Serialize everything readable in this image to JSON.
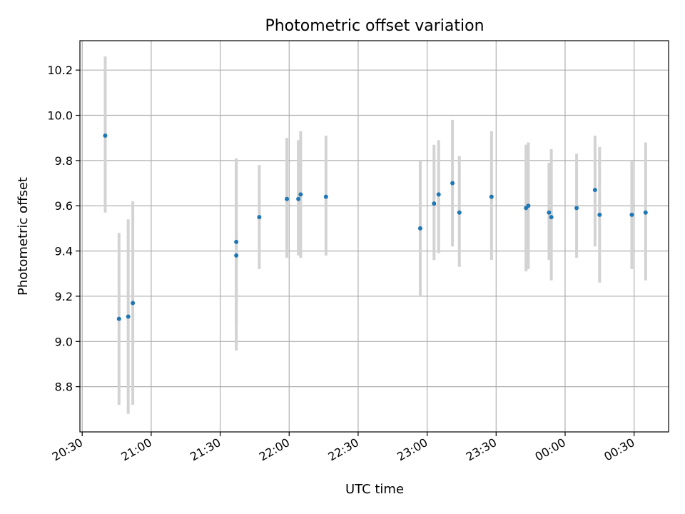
{
  "chart_data": {
    "type": "scatter",
    "title": "Photometric offset variation",
    "xlabel": "UTC time",
    "ylabel": "Photometric offset",
    "x_tick_labels": [
      "20:30",
      "21:00",
      "21:30",
      "22:00",
      "22:30",
      "23:00",
      "23:30",
      "00:00",
      "00:30"
    ],
    "y_tick_labels": [
      "8.8",
      "9.0",
      "9.2",
      "9.4",
      "9.6",
      "9.8",
      "10.0",
      "10.2"
    ],
    "y_ticks": [
      8.8,
      9.0,
      9.2,
      9.4,
      9.6,
      9.8,
      10.0,
      10.2
    ],
    "ylim": [
      8.6,
      10.33
    ],
    "xlim": [
      "20:29",
      "00:45"
    ],
    "grid": true,
    "point_color": "#1f77b4",
    "errorbar_color": "#d3d3d3",
    "points": [
      {
        "x": "20:40",
        "y": 9.91,
        "ylow": 9.57,
        "yhigh": 10.26
      },
      {
        "x": "20:46",
        "y": 9.1,
        "ylow": 8.72,
        "yhigh": 9.48
      },
      {
        "x": "20:50",
        "y": 9.11,
        "ylow": 8.68,
        "yhigh": 9.54
      },
      {
        "x": "20:52",
        "y": 9.17,
        "ylow": 8.72,
        "yhigh": 9.62
      },
      {
        "x": "21:37",
        "y": 9.44,
        "ylow": 9.07,
        "yhigh": 9.81
      },
      {
        "x": "21:37",
        "y": 9.38,
        "ylow": 8.96,
        "yhigh": 9.78
      },
      {
        "x": "21:47",
        "y": 9.55,
        "ylow": 9.32,
        "yhigh": 9.78
      },
      {
        "x": "21:59",
        "y": 9.63,
        "ylow": 9.37,
        "yhigh": 9.9
      },
      {
        "x": "22:04",
        "y": 9.63,
        "ylow": 9.38,
        "yhigh": 9.89
      },
      {
        "x": "22:05",
        "y": 9.65,
        "ylow": 9.37,
        "yhigh": 9.93
      },
      {
        "x": "22:16",
        "y": 9.64,
        "ylow": 9.38,
        "yhigh": 9.91
      },
      {
        "x": "22:57",
        "y": 9.5,
        "ylow": 9.2,
        "yhigh": 9.8
      },
      {
        "x": "23:03",
        "y": 9.61,
        "ylow": 9.36,
        "yhigh": 9.87
      },
      {
        "x": "23:05",
        "y": 9.65,
        "ylow": 9.39,
        "yhigh": 9.89
      },
      {
        "x": "23:11",
        "y": 9.7,
        "ylow": 9.42,
        "yhigh": 9.98
      },
      {
        "x": "23:14",
        "y": 9.57,
        "ylow": 9.33,
        "yhigh": 9.82
      },
      {
        "x": "23:28",
        "y": 9.64,
        "ylow": 9.36,
        "yhigh": 9.93
      },
      {
        "x": "23:43",
        "y": 9.59,
        "ylow": 9.31,
        "yhigh": 9.87
      },
      {
        "x": "23:44",
        "y": 9.6,
        "ylow": 9.32,
        "yhigh": 9.88
      },
      {
        "x": "23:53",
        "y": 9.57,
        "ylow": 9.36,
        "yhigh": 9.79
      },
      {
        "x": "23:54",
        "y": 9.55,
        "ylow": 9.27,
        "yhigh": 9.85
      },
      {
        "x": "00:05",
        "y": 9.59,
        "ylow": 9.37,
        "yhigh": 9.83
      },
      {
        "x": "00:13",
        "y": 9.67,
        "ylow": 9.42,
        "yhigh": 9.91
      },
      {
        "x": "00:15",
        "y": 9.56,
        "ylow": 9.26,
        "yhigh": 9.86
      },
      {
        "x": "00:29",
        "y": 9.56,
        "ylow": 9.32,
        "yhigh": 9.8
      },
      {
        "x": "00:35",
        "y": 9.57,
        "ylow": 9.27,
        "yhigh": 9.88
      }
    ]
  }
}
